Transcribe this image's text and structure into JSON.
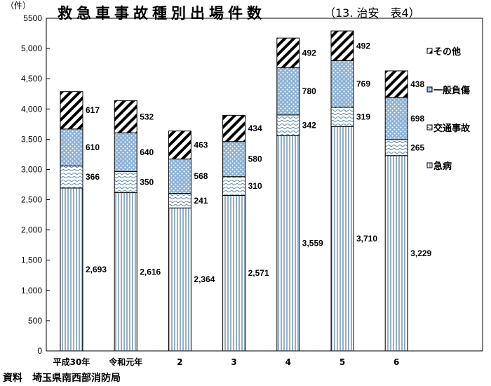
{
  "chart_data": {
    "type": "bar",
    "stacked": true,
    "title": "救急車事故種別出場件数",
    "subtitle": "（13. 治安　表4）",
    "unit_label": "（件）",
    "source": "資料　埼玉県南西部消防局",
    "categories": [
      "平成30年",
      "令和元年",
      "2",
      "3",
      "4",
      "5",
      "6"
    ],
    "ylim": [
      0,
      5500
    ],
    "ytick_step": 500,
    "ytick_labels": [
      "0",
      "500",
      "1,000",
      "1,500",
      "2,000",
      "2,500",
      "3,000",
      "3,500",
      "4,000",
      "4,500",
      "5,000",
      "5500"
    ],
    "series": [
      {
        "name": "急病",
        "values": [
          2693,
          2616,
          2364,
          2571,
          3559,
          3710,
          3229
        ],
        "labels": [
          "2,693",
          "2,616",
          "2,364",
          "2,571",
          "3,559",
          "3,710",
          "3,229"
        ]
      },
      {
        "name": "交通事故",
        "values": [
          366,
          350,
          241,
          310,
          342,
          319,
          265
        ],
        "labels": [
          "366",
          "350",
          "241",
          "310",
          "342",
          "319",
          "265"
        ]
      },
      {
        "name": "一般負傷",
        "values": [
          610,
          640,
          568,
          580,
          780,
          769,
          698
        ],
        "labels": [
          "610",
          "640",
          "568",
          "580",
          "780",
          "769",
          "698"
        ]
      },
      {
        "name": "その他",
        "values": [
          617,
          532,
          463,
          434,
          492,
          492,
          438
        ],
        "labels": [
          "617",
          "532",
          "463",
          "434",
          "492",
          "492",
          "438"
        ]
      }
    ],
    "legend_order": [
      "その他",
      "一般負傷",
      "交通事故",
      "急病"
    ],
    "legend_position": "right"
  }
}
